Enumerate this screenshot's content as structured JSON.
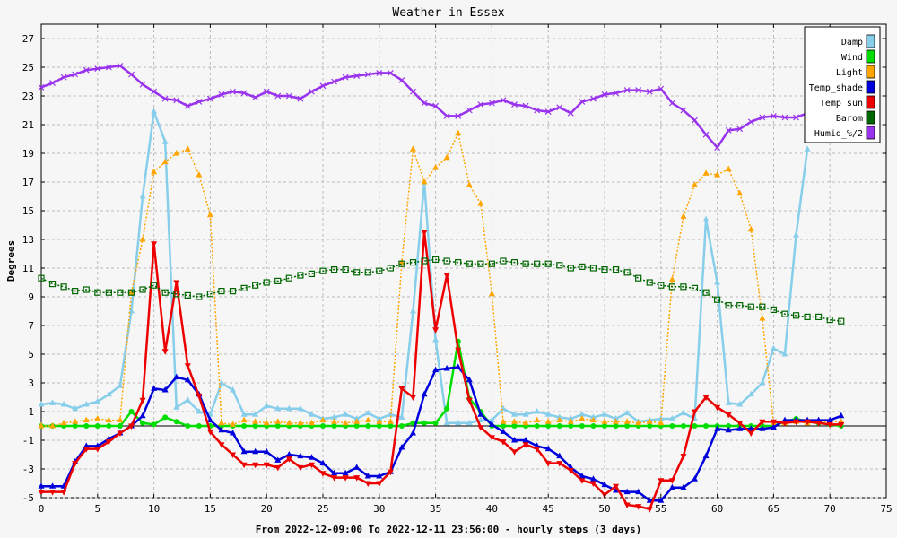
{
  "chart_data": {
    "type": "line",
    "title": "Weather in Essex",
    "xlabel": "From 2022-12-09:00 To 2022-12-11 23:56:00 - hourly steps (3 days)",
    "ylabel": "Degrees",
    "xlim": [
      0,
      75
    ],
    "ylim": [
      -5,
      28
    ],
    "x_ticks": [
      0,
      5,
      10,
      15,
      20,
      25,
      30,
      35,
      40,
      45,
      50,
      55,
      60,
      65,
      70,
      75
    ],
    "y_ticks": [
      -5,
      -3,
      -1,
      1,
      3,
      5,
      7,
      9,
      11,
      13,
      15,
      17,
      19,
      21,
      23,
      25,
      27
    ],
    "grid": true,
    "legend_position": "top-right",
    "series": [
      {
        "name": "Damp",
        "color": "#87ceeb",
        "marker": "triangle-up",
        "line": "solid",
        "values": [
          1.5,
          1.6,
          1.5,
          1.2,
          1.5,
          1.7,
          2.2,
          2.8,
          8,
          16,
          21.9,
          19.8,
          1.3,
          1.8,
          1,
          0.8,
          3,
          2.5,
          0.8,
          0.8,
          1.4,
          1.2,
          1.2,
          1.2,
          0.8,
          0.5,
          0.6,
          0.8,
          0.5,
          0.9,
          0.5,
          0.8,
          0.6,
          8,
          17,
          6,
          0.2,
          0.2,
          0.2,
          0.4,
          0.4,
          1.2,
          0.8,
          0.8,
          1,
          0.8,
          0.6,
          0.5,
          0.8,
          0.6,
          0.8,
          0.5,
          0.9,
          0.3,
          0.4,
          0.5,
          0.5,
          0.9,
          0.5,
          14.4,
          10,
          1.6,
          1.5,
          2.2,
          3,
          5.4,
          5,
          13.3,
          19.3
        ]
      },
      {
        "name": "Wind",
        "color": "#00dd00",
        "marker": "circle",
        "line": "solid",
        "values": [
          0,
          0,
          0,
          0,
          0,
          0,
          0,
          0,
          1,
          0.2,
          0.1,
          0.6,
          0.3,
          0,
          0,
          0,
          0,
          0,
          0,
          0,
          0,
          0,
          0,
          0,
          0,
          0,
          0,
          0,
          0,
          0,
          0,
          0,
          0,
          0.2,
          0.2,
          0.2,
          1.2,
          5.9,
          1.9,
          1,
          0,
          0,
          0,
          0,
          0,
          0,
          0,
          0,
          0,
          0,
          0,
          0,
          0,
          0,
          0,
          0,
          0,
          0,
          0,
          0,
          0,
          0,
          0,
          0,
          0,
          0,
          0.3,
          0.5,
          0.3,
          0.2,
          0.1,
          0
        ]
      },
      {
        "name": "Light",
        "color": "#ffa500",
        "marker": "triangle-up",
        "line": "dotted",
        "values": [
          0,
          0,
          0.2,
          0.3,
          0.4,
          0.5,
          0.4,
          0.4,
          9.3,
          13,
          17.7,
          18.4,
          19,
          19.3,
          17.5,
          14.7,
          0.2,
          0.1,
          0.4,
          0.3,
          0.2,
          0.3,
          0.2,
          0.2,
          0.2,
          0.4,
          0.3,
          0.2,
          0.3,
          0.4,
          0.3,
          0.3,
          11.4,
          19.3,
          17,
          18,
          18.7,
          20.4,
          16.8,
          15.5,
          9.2,
          0.3,
          0.3,
          0.2,
          0.4,
          0.3,
          0.4,
          0.3,
          0.5,
          0.4,
          0.3,
          0.3,
          0.3,
          0.2,
          0.3,
          0.2,
          10.2,
          14.6,
          16.8,
          17.6,
          17.5,
          17.9,
          16.2,
          13.7,
          7.5,
          0.2,
          0.2,
          0.3,
          0.2,
          0.3,
          0.3,
          0.3
        ]
      },
      {
        "name": "Temp_shade",
        "color": "#0000dd",
        "marker": "triangle-up",
        "line": "solid",
        "values": [
          -4.2,
          -4.2,
          -4.2,
          -2.5,
          -1.4,
          -1.4,
          -0.9,
          -0.5,
          0,
          0.7,
          2.6,
          2.5,
          3.4,
          3.2,
          2.2,
          0.4,
          -0.3,
          -0.5,
          -1.8,
          -1.8,
          -1.8,
          -2.4,
          -2.0,
          -2.1,
          -2.2,
          -2.6,
          -3.3,
          -3.3,
          -2.9,
          -3.5,
          -3.5,
          -3.2,
          -1.5,
          -0.5,
          2.2,
          3.9,
          4,
          4.1,
          3.2,
          0.8,
          0.1,
          -0.4,
          -1,
          -1,
          -1.4,
          -1.6,
          -2.1,
          -2.9,
          -3.5,
          -3.7,
          -4.1,
          -4.5,
          -4.6,
          -4.6,
          -5.2,
          -5.2,
          -4.3,
          -4.3,
          -3.7,
          -2.1,
          -0.2,
          -0.3,
          -0.2,
          -0.2,
          -0.2,
          -0.1,
          0.4,
          0.4,
          0.4,
          0.4,
          0.4,
          0.7
        ]
      },
      {
        "name": "Temp_sun",
        "color": "#ee0000",
        "marker": "triangle-down",
        "line": "solid",
        "values": [
          -4.6,
          -4.6,
          -4.6,
          -2.6,
          -1.6,
          -1.6,
          -1.1,
          -0.5,
          0,
          1.8,
          12.7,
          5.2,
          10,
          4.2,
          2.1,
          -0.4,
          -1.3,
          -2.0,
          -2.7,
          -2.7,
          -2.7,
          -2.9,
          -2.3,
          -2.9,
          -2.7,
          -3.3,
          -3.6,
          -3.6,
          -3.6,
          -4.0,
          -4.0,
          -3.2,
          2.6,
          2.0,
          13.5,
          6.7,
          10.5,
          5.3,
          1.8,
          -0.1,
          -0.8,
          -1.1,
          -1.8,
          -1.3,
          -1.6,
          -2.6,
          -2.6,
          -3.1,
          -3.8,
          -4.0,
          -4.8,
          -4.2,
          -5.5,
          -5.6,
          -5.8,
          -3.8,
          -3.8,
          -2.1,
          1.0,
          2.0,
          1.3,
          0.8,
          0.2,
          -0.5,
          0.3,
          0.3,
          0.2,
          0.3,
          0.3,
          0.2,
          0.1,
          0.1
        ]
      },
      {
        "name": "Barom",
        "color": "#006600",
        "marker": "square-open",
        "line": "dotted",
        "values": [
          10.3,
          9.9,
          9.7,
          9.4,
          9.5,
          9.3,
          9.3,
          9.3,
          9.3,
          9.5,
          9.8,
          9.3,
          9.2,
          9.1,
          9,
          9.2,
          9.4,
          9.4,
          9.6,
          9.8,
          10,
          10.1,
          10.3,
          10.5,
          10.6,
          10.8,
          10.9,
          10.9,
          10.7,
          10.7,
          10.8,
          11,
          11.3,
          11.4,
          11.5,
          11.6,
          11.5,
          11.4,
          11.3,
          11.3,
          11.3,
          11.5,
          11.4,
          11.3,
          11.3,
          11.3,
          11.2,
          11.0,
          11.1,
          11,
          10.9,
          10.9,
          10.7,
          10.3,
          10.0,
          9.8,
          9.7,
          9.7,
          9.6,
          9.3,
          8.8,
          8.4,
          8.4,
          8.3,
          8.3,
          8.1,
          7.8,
          7.7,
          7.6,
          7.6,
          7.4,
          7.3
        ]
      },
      {
        "name": "Humid_%/2",
        "color": "#9933ee",
        "marker": "cross",
        "line": "solid",
        "values": [
          23.6,
          23.9,
          24.3,
          24.5,
          24.8,
          24.9,
          25,
          25.1,
          24.5,
          23.8,
          23.3,
          22.8,
          22.7,
          22.3,
          22.6,
          22.8,
          23.1,
          23.3,
          23.2,
          22.9,
          23.3,
          23.0,
          23,
          22.8,
          23.3,
          23.7,
          24,
          24.3,
          24.4,
          24.5,
          24.6,
          24.6,
          24.1,
          23.3,
          22.5,
          22.3,
          21.6,
          21.6,
          22,
          22.4,
          22.5,
          22.7,
          22.4,
          22.3,
          22.0,
          21.9,
          22.2,
          21.8,
          22.6,
          22.8,
          23.1,
          23.2,
          23.4,
          23.4,
          23.3,
          23.5,
          22.5,
          22.0,
          21.3,
          20.3,
          19.4,
          20.6,
          20.7,
          21.2,
          21.5,
          21.6,
          21.5,
          21.5,
          21.8
        ]
      }
    ]
  }
}
